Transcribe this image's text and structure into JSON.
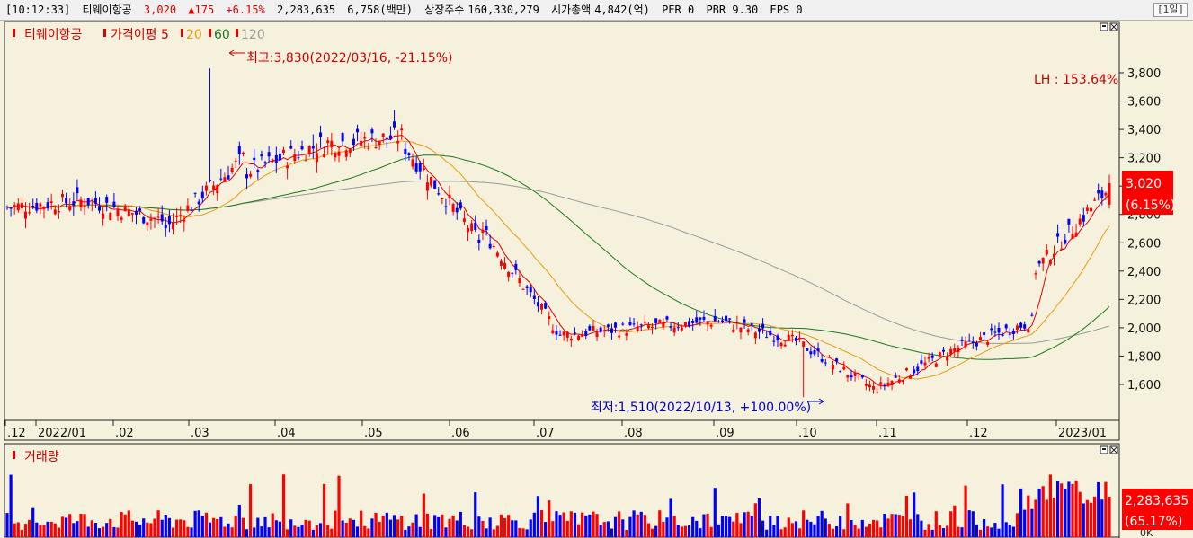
{
  "infobar": {
    "time": "[10:12:33]",
    "name": "티웨이항공",
    "price": "3,020",
    "change": "▲175",
    "change_pct": "+6.15%",
    "volume": "2,283,635",
    "amount": "6,758(백만)",
    "listed_label": "상장주수",
    "listed": "160,330,279",
    "mktcap_label": "시가총액",
    "mktcap": "4,842(억)",
    "per": "PER 0",
    "pbr": "PBR 9.30",
    "eps": "EPS 0",
    "timeframe": "[1일]"
  },
  "price_panel": {
    "legend_name": "티웨이항공",
    "legend_ma_label": "가격이평 5",
    "legend_ma20": "20",
    "legend_ma60": "60",
    "legend_ma120": "120",
    "high_note": "최고:3,830(2022/03/16, -21.15%)",
    "low_note": "최저:1,510(2022/10/13, +100.00%)",
    "lh_note": "LH : 153.64%",
    "current_price": "3,020",
    "current_pct": "(6.15%)"
  },
  "volume_panel": {
    "title": "거래량",
    "current_volume": "2,283,635",
    "current_pct": "(65.17%)",
    "zero_label": "0K"
  },
  "colors": {
    "up": "#ff0000",
    "down": "#0000ff",
    "ma5": "#e00000",
    "ma20": "#e89a10",
    "ma60": "#1a7a1a",
    "ma120": "#9a9a9a",
    "background": "#f5f1dc"
  },
  "chart_data": {
    "type": "candlestick",
    "price_axis_ticks": [
      "3,800",
      "3,600",
      "3,400",
      "3,200",
      "3,000",
      "2,800",
      "2,600",
      "2,400",
      "2,200",
      "2,000",
      "1,800",
      "1,600"
    ],
    "price_axis_values": [
      3800,
      3600,
      3400,
      3200,
      3000,
      2800,
      2600,
      2400,
      2200,
      2000,
      1800,
      1600
    ],
    "ylim": [
      1400,
      3950
    ],
    "x_tick_labels": [
      ".12",
      "2022/01",
      ".02",
      ".03",
      ".04",
      ".05",
      ".06",
      ".07",
      ".08",
      ".09",
      ".10",
      ".11",
      ".12",
      "2023/01"
    ],
    "monthly_path": [
      {
        "month": "2021/12",
        "start": 2850,
        "end": 2900
      },
      {
        "month": "2022/01",
        "start": 2900,
        "end": 2750
      },
      {
        "month": "2022/02",
        "start": 2700,
        "end": 3200
      },
      {
        "month": "2022/03",
        "start": 3100,
        "end": 3300
      },
      {
        "month": "2022/04",
        "start": 3300,
        "end": 3350
      },
      {
        "month": "2022/05",
        "start": 3300,
        "end": 2600
      },
      {
        "month": "2022/06",
        "start": 2700,
        "end": 1950
      },
      {
        "month": "2022/07",
        "start": 1950,
        "end": 2000
      },
      {
        "month": "2022/08",
        "start": 2000,
        "end": 2050
      },
      {
        "month": "2022/09",
        "start": 2050,
        "end": 1900
      },
      {
        "month": "2022/10",
        "start": 1900,
        "end": 1560
      },
      {
        "month": "2022/11",
        "start": 1570,
        "end": 1850
      },
      {
        "month": "2022/12",
        "start": 1850,
        "end": 2050
      },
      {
        "month": "2023/01",
        "start": 2400,
        "end": 3020
      }
    ],
    "high": {
      "value": 3830,
      "date": "2022/03/16"
    },
    "low": {
      "value": 1510,
      "date": "2022/10/13"
    },
    "last_close": 3020,
    "last_volume": 2283635
  }
}
